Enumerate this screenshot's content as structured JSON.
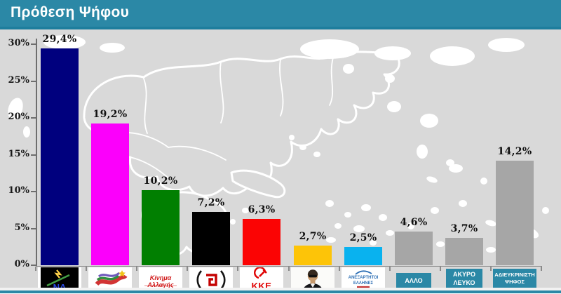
{
  "header": {
    "title": "Πρόθεση Ψήφου"
  },
  "chart_data": {
    "type": "bar",
    "title": "Πρόθεση Ψήφου",
    "xlabel": "",
    "ylabel": "",
    "ylim": [
      0,
      30
    ],
    "grid": false,
    "legend": "none",
    "background": "greece-map",
    "decimal_separator": ",",
    "yticks": [
      {
        "value": 30,
        "label": "30%"
      },
      {
        "value": 25,
        "label": "25%"
      },
      {
        "value": 20,
        "label": "20%"
      },
      {
        "value": 15,
        "label": "15%"
      },
      {
        "value": 10,
        "label": "10%"
      },
      {
        "value": 5,
        "label": "5%"
      },
      {
        "value": 0,
        "label": "0%"
      }
    ],
    "bars": [
      {
        "id": "nd",
        "logo": "nd-party-logo",
        "logo_text": "ΝΔ",
        "value": 29.4,
        "label": "29,4%",
        "color": "#00007E"
      },
      {
        "id": "syriza",
        "logo": "syriza-flags-logo",
        "logo_text": "",
        "value": 19.2,
        "label": "19,2%",
        "color": "#FB00FB"
      },
      {
        "id": "kinima-allagis",
        "logo": "kinima-allagis-logo",
        "logo_text": "Κίνημα Αλλαγής",
        "value": 10.2,
        "label": "10,2%",
        "color": "#017F01"
      },
      {
        "id": "xrysi-avgi",
        "logo": "meander-wreath-logo",
        "logo_text": "",
        "value": 7.2,
        "label": "7,2%",
        "color": "#000000"
      },
      {
        "id": "kke",
        "logo": "kke-party-logo",
        "logo_text": "ΚΚΕ",
        "value": 6.3,
        "label": "6,3%",
        "color": "#FB0404"
      },
      {
        "id": "leader-photo-party",
        "logo": "party-leader-photo",
        "logo_text": "",
        "value": 2.7,
        "label": "2,7%",
        "color": "#FDC408"
      },
      {
        "id": "anexartitoi-ellines",
        "logo": "anexartitoi-ellines-logo",
        "logo_text": "ΑΝΕΞΑΡΤΗΤΟΙ ΕΛΛΗΝΕΣ",
        "value": 2.5,
        "label": "2,5%",
        "color": "#09B2EF"
      },
      {
        "id": "allo",
        "logo": "text-box",
        "logo_text": "ΑΛΛΟ",
        "value": 4.6,
        "label": "4,6%",
        "color": "#A6A6A6"
      },
      {
        "id": "akyro-leyko",
        "logo": "text-box",
        "logo_text": "ΑΚΥΡΟ ΛΕΥΚΟ",
        "value": 3.7,
        "label": "3,7%",
        "color": "#A6A6A6"
      },
      {
        "id": "adieykrinisti-psifos",
        "logo": "text-box",
        "logo_text": "ΑΔΙΕΥΚΡΙΝΙΣΤΗ ΨΗΦΟΣ",
        "value": 14.2,
        "label": "14,2%",
        "color": "#A6A6A6"
      }
    ]
  },
  "colors": {
    "header_bg": "#2B88A6",
    "header_border": "#1E7E9D",
    "chart_bg": "#D9D9D9",
    "map_outline": "#FFFFFF",
    "axis": "#6E6E6E",
    "value_label": "#111111",
    "xlabel_box_bg": "#2B88A6",
    "xlabel_text": "#FFFFFF",
    "bottom_line": "#2B88A6"
  }
}
